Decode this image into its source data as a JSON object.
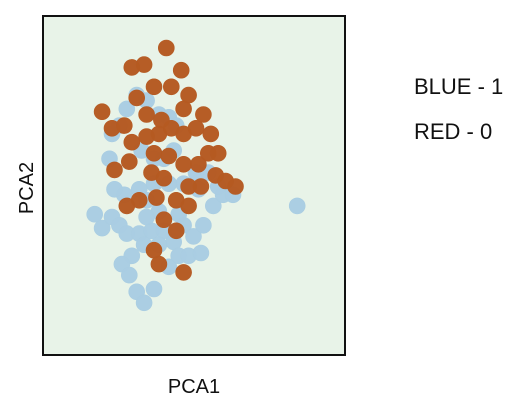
{
  "chart_data": {
    "type": "scatter",
    "title": "",
    "xlabel": "PCA1",
    "ylabel": "PCA2",
    "xlim": [
      0,
      10
    ],
    "ylim": [
      0,
      10
    ],
    "grid": false,
    "legend": "right",
    "legend_entries": [
      "BLUE - 1",
      "RED - 0"
    ],
    "colors": {
      "background": "#e8f3e8",
      "blue": "#a9cde2",
      "red": "#b55a22"
    },
    "series": [
      {
        "name": "BLUE - 1",
        "color": "#a9cde2",
        "points": [
          [
            1.0,
            4.0
          ],
          [
            1.3,
            3.5
          ],
          [
            1.7,
            3.9
          ],
          [
            2.0,
            3.6
          ],
          [
            2.3,
            3.3
          ],
          [
            2.8,
            3.3
          ],
          [
            3.3,
            3.4
          ],
          [
            3.8,
            3.4
          ],
          [
            4.3,
            3.4
          ],
          [
            4.6,
            3.6
          ],
          [
            4.2,
            3.0
          ],
          [
            3.6,
            2.9
          ],
          [
            3.0,
            2.9
          ],
          [
            2.5,
            2.5
          ],
          [
            2.1,
            2.2
          ],
          [
            2.4,
            1.8
          ],
          [
            2.7,
            1.2
          ],
          [
            3.0,
            0.8
          ],
          [
            3.4,
            1.3
          ],
          [
            4.0,
            2.1
          ],
          [
            4.4,
            2.5
          ],
          [
            4.8,
            2.5
          ],
          [
            5.3,
            2.6
          ],
          [
            5.0,
            3.2
          ],
          [
            5.4,
            3.6
          ],
          [
            5.8,
            4.3
          ],
          [
            6.2,
            4.7
          ],
          [
            6.6,
            4.7
          ],
          [
            6.0,
            5.0
          ],
          [
            5.2,
            4.9
          ],
          [
            4.6,
            5.1
          ],
          [
            4.0,
            5.1
          ],
          [
            3.4,
            5.1
          ],
          [
            2.8,
            4.9
          ],
          [
            2.2,
            4.7
          ],
          [
            1.8,
            4.9
          ],
          [
            1.6,
            6.0
          ],
          [
            1.7,
            6.9
          ],
          [
            2.0,
            7.2
          ],
          [
            2.3,
            7.8
          ],
          [
            2.7,
            8.3
          ],
          [
            3.1,
            8.1
          ],
          [
            3.6,
            7.6
          ],
          [
            4.0,
            7.5
          ],
          [
            4.3,
            7.2
          ],
          [
            2.9,
            6.3
          ],
          [
            3.4,
            6.0
          ],
          [
            3.8,
            6.0
          ],
          [
            4.2,
            6.3
          ],
          [
            5.1,
            5.5
          ],
          [
            5.6,
            5.5
          ],
          [
            3.1,
            4.5
          ],
          [
            3.6,
            4.1
          ],
          [
            4.4,
            4.0
          ],
          [
            3.1,
            3.9
          ],
          [
            9.2,
            4.3
          ]
        ]
      },
      {
        "name": "RED - 0",
        "color": "#b55a22",
        "points": [
          [
            3.0,
            9.4
          ],
          [
            3.9,
            10.0
          ],
          [
            4.5,
            9.2
          ],
          [
            2.5,
            9.3
          ],
          [
            4.1,
            8.6
          ],
          [
            3.4,
            8.6
          ],
          [
            4.8,
            8.3
          ],
          [
            2.7,
            8.2
          ],
          [
            1.3,
            7.7
          ],
          [
            1.7,
            7.1
          ],
          [
            2.2,
            7.2
          ],
          [
            3.1,
            7.6
          ],
          [
            2.5,
            6.6
          ],
          [
            3.1,
            6.8
          ],
          [
            3.6,
            6.9
          ],
          [
            4.1,
            7.1
          ],
          [
            4.6,
            6.9
          ],
          [
            5.1,
            7.1
          ],
          [
            5.7,
            6.9
          ],
          [
            4.6,
            7.8
          ],
          [
            5.4,
            7.6
          ],
          [
            1.8,
            5.6
          ],
          [
            2.4,
            5.9
          ],
          [
            3.3,
            5.5
          ],
          [
            3.8,
            5.3
          ],
          [
            4.6,
            5.8
          ],
          [
            5.2,
            5.8
          ],
          [
            5.6,
            6.2
          ],
          [
            6.0,
            6.2
          ],
          [
            5.9,
            5.4
          ],
          [
            5.3,
            5.0
          ],
          [
            4.8,
            5.0
          ],
          [
            4.8,
            4.3
          ],
          [
            4.3,
            4.5
          ],
          [
            3.5,
            4.6
          ],
          [
            2.8,
            4.5
          ],
          [
            2.3,
            4.3
          ],
          [
            3.8,
            3.8
          ],
          [
            4.3,
            3.4
          ],
          [
            3.4,
            2.7
          ],
          [
            3.6,
            2.2
          ],
          [
            4.6,
            1.9
          ],
          [
            6.7,
            5.0
          ],
          [
            6.3,
            5.2
          ],
          [
            3.4,
            6.2
          ],
          [
            4.0,
            6.1
          ],
          [
            3.7,
            7.4
          ]
        ]
      }
    ]
  }
}
